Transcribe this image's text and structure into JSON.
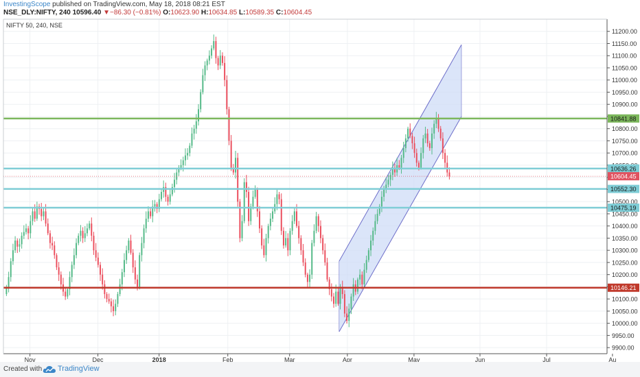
{
  "header": {
    "author": "InvestingScope",
    "published_text": " published on TradingView.com, May 18, 2018 08:21 EST",
    "symbol": "NSE_DLY:NIFTY, 240",
    "last": "10596.40",
    "change": "−86.30 (−0.81%)",
    "o_label": "O:",
    "o_value": "10623.90",
    "h_label": "H:",
    "h_value": "10634.85",
    "l_label": "L:",
    "l_value": "10589.35",
    "c_label": "C:",
    "c_value": "10604.45"
  },
  "footer": {
    "created_with": "Created with",
    "brand": "TradingView",
    "logo_icon": "tradingview-cloud-icon"
  },
  "chart_data": {
    "type": "candlestick",
    "symbol_label": "NIFTY 50, 240, NSE",
    "ylim": [
      9875,
      11250
    ],
    "y_ticks": [
      9900,
      9950,
      10000,
      10050,
      10100,
      10150,
      10200,
      10250,
      10300,
      10350,
      10400,
      10450,
      10500,
      10550,
      10600,
      10650,
      10700,
      10750,
      10800,
      10850,
      10900,
      10950,
      11000,
      11050,
      11100,
      11150,
      11200
    ],
    "x_ticks": [
      {
        "label": "Nov",
        "frac": 0.0439,
        "bold": false
      },
      {
        "label": "Dec",
        "frac": 0.1565,
        "bold": false
      },
      {
        "label": "2018",
        "frac": 0.2579,
        "bold": true
      },
      {
        "label": "Feb",
        "frac": 0.3717,
        "bold": false
      },
      {
        "label": "Mar",
        "frac": 0.4741,
        "bold": false
      },
      {
        "label": "Apr",
        "frac": 0.5698,
        "bold": false
      },
      {
        "label": "May",
        "frac": 0.6802,
        "bold": false
      },
      {
        "label": "Jun",
        "frac": 0.7895,
        "bold": false
      },
      {
        "label": "Jul",
        "frac": 0.8999,
        "bold": false
      },
      {
        "label": "Au",
        "frac": 1.009,
        "bold": false
      }
    ],
    "levels": [
      {
        "value": 10841.88,
        "label": "10841.88",
        "color": "#7cb75c"
      },
      {
        "value": 10636.26,
        "label": "10636.26",
        "color": "#7fcdd6"
      },
      {
        "value": 10552.3,
        "label": "10552.30",
        "color": "#7fcdd6"
      },
      {
        "value": 10475.19,
        "label": "10475.19",
        "color": "#7fcdd6"
      },
      {
        "value": 10146.21,
        "label": "10146.21",
        "color": "#c0392b"
      }
    ],
    "last_price": {
      "value": 10604.45,
      "label": "10604.45",
      "color": "#e05260"
    },
    "channel": {
      "lower": [
        [
          0.5561,
          9965
        ],
        [
          0.7588,
          10850
        ]
      ],
      "upper": [
        [
          0.5561,
          10255
        ],
        [
          0.7588,
          11145
        ]
      ],
      "color": "#6d6ec9",
      "fill": "#cfdcf7"
    },
    "candle_colors": {
      "up": "#53b987",
      "down": "#eb4d5c"
    },
    "closes": [
      10150,
      10190,
      10255,
      10300,
      10340,
      10315,
      10325,
      10360,
      10375,
      10390,
      10370,
      10420,
      10460,
      10430,
      10480,
      10470,
      10440,
      10460,
      10410,
      10370,
      10330,
      10320,
      10280,
      10230,
      10200,
      10160,
      10130,
      10110,
      10140,
      10190,
      10240,
      10280,
      10330,
      10360,
      10380,
      10350,
      10370,
      10390,
      10410,
      10360,
      10300,
      10270,
      10240,
      10200,
      10160,
      10120,
      10100,
      10090,
      10070,
      10050,
      10080,
      10120,
      10160,
      10210,
      10260,
      10300,
      10340,
      10290,
      10230,
      10180,
      10150,
      10280,
      10330,
      10390,
      10430,
      10460,
      10440,
      10480,
      10490,
      10470,
      10510,
      10540,
      10560,
      10520,
      10500,
      10530,
      10560,
      10590,
      10620,
      10640,
      10650,
      10670,
      10690,
      10700,
      10730,
      10780,
      10800,
      10830,
      10880,
      10950,
      11020,
      11060,
      11080,
      11100,
      11130,
      11160,
      11090,
      11060,
      11100,
      11070,
      11000,
      10880,
      10750,
      10640,
      10620,
      10680,
      10500,
      10350,
      10420,
      10580,
      10540,
      10420,
      10480,
      10520,
      10550,
      10460,
      10390,
      10320,
      10280,
      10350,
      10400,
      10430,
      10460,
      10490,
      10530,
      10510,
      10380,
      10320,
      10350,
      10300,
      10380,
      10420,
      10460,
      10400,
      10350,
      10300,
      10250,
      10200,
      10170,
      10200,
      10330,
      10380,
      10440,
      10400,
      10350,
      10300,
      10250,
      10180,
      10140,
      10110,
      10080,
      10130,
      10080,
      10150,
      10120,
      10040,
      10010,
      10060,
      10110,
      10160,
      10130,
      10180,
      10200,
      10160,
      10220,
      10260,
      10300,
      10340,
      10380,
      10420,
      10450,
      10480,
      10520,
      10550,
      10570,
      10590,
      10610,
      10640,
      10620,
      10650,
      10640,
      10680,
      10720,
      10760,
      10800,
      10770,
      10740,
      10700,
      10660,
      10640,
      10700,
      10760,
      10780,
      10740,
      10720,
      10780,
      10820,
      10840,
      10800,
      10760,
      10700,
      10660,
      10620,
      10604
    ]
  }
}
